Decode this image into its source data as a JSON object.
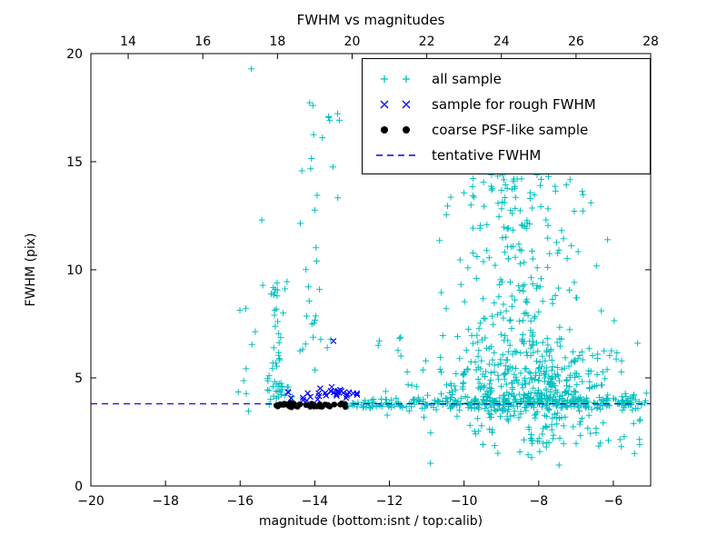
{
  "chart_data": {
    "type": "scatter",
    "title": "FWHM vs magnitudes",
    "xlabel": "magnitude (bottom:isnt / top:calib)",
    "ylabel": "FWHM (pix)",
    "xlim": [
      -20,
      -5
    ],
    "ylim": [
      0,
      20
    ],
    "grid": false,
    "legend_position": "upper right inside",
    "axes": {
      "x_bottom": {
        "values": [
          -20,
          -18,
          -16,
          -14,
          -12,
          -10,
          -8,
          -6
        ],
        "labels": [
          "−20",
          "−18",
          "−16",
          "−14",
          "−12",
          "−10",
          "−8",
          "−6"
        ]
      },
      "x_top": {
        "values": [
          14,
          16,
          18,
          20,
          22,
          24,
          26,
          28
        ],
        "labels": [
          "14",
          "16",
          "18",
          "20",
          "22",
          "24",
          "26",
          "28"
        ],
        "offset_from_bottom": 33
      },
      "y": {
        "values": [
          0,
          5,
          10,
          15,
          20
        ],
        "labels": [
          "0",
          "5",
          "10",
          "15",
          "20"
        ]
      }
    },
    "series": [
      {
        "name": "all sample",
        "marker": "plus",
        "color": "#00bfbf"
      },
      {
        "name": "sample for rough FWHM",
        "marker": "x",
        "color": "#0000ff"
      },
      {
        "name": "coarse PSF-like sample",
        "marker": "dot",
        "color": "#000000"
      },
      {
        "name": "tentative FWHM",
        "marker": "dashed-line",
        "color": "#0000ff",
        "value": 3.8
      }
    ],
    "tentative_fwhm": 3.8,
    "point_clusters": [
      {
        "series": 0,
        "count": 40,
        "x": {
          "dist": "normal",
          "mean": -15.0,
          "sd": 0.13,
          "min": -15.4,
          "max": -14.65
        },
        "y": {
          "dist": "uniform",
          "min": 3.6,
          "max": 9.8
        }
      },
      {
        "series": 0,
        "count": 22,
        "x": {
          "dist": "normal",
          "mean": -13.95,
          "sd": 0.22,
          "min": -14.5,
          "max": -13.4
        },
        "y": {
          "dist": "uniform",
          "min": 5.0,
          "max": 13.5
        }
      },
      {
        "series": 0,
        "count": 12,
        "x": {
          "dist": "normal",
          "mean": -13.85,
          "sd": 0.3,
          "min": -14.5,
          "max": -13.3
        },
        "y": {
          "dist": "uniform",
          "min": 13.0,
          "max": 17.8
        }
      },
      {
        "series": 0,
        "count": 18,
        "x": {
          "dist": "uniform",
          "min": -15.35,
          "max": -14.5
        },
        "y": {
          "dist": "normal",
          "mean": 4.45,
          "sd": 0.3,
          "min": 3.95,
          "max": 5.3
        }
      },
      {
        "series": 0,
        "count": 15,
        "x": {
          "dist": "uniform",
          "min": -12.6,
          "max": -11.0
        },
        "y": {
          "dist": "uniform",
          "min": 1.8,
          "max": 7.0
        }
      },
      {
        "series": 0,
        "count": 420,
        "x": {
          "dist": "normal",
          "mean": -8.2,
          "sd": 1.15,
          "min": -11.2,
          "max": -5.15
        },
        "y": {
          "dist": "normal",
          "mean": 4.6,
          "sd": 1.25,
          "min": 0.9,
          "max": 8.5
        }
      },
      {
        "series": 0,
        "count": 190,
        "x": {
          "dist": "normal",
          "mean": -8.7,
          "sd": 0.95,
          "min": -11.0,
          "max": -5.4
        },
        "y": {
          "dist": "uniform",
          "min": 6.0,
          "max": 14.5
        }
      },
      {
        "series": 0,
        "count": 55,
        "x": {
          "dist": "normal",
          "mean": -8.7,
          "sd": 1.0,
          "min": -10.7,
          "max": -6.2
        },
        "y": {
          "dist": "uniform",
          "min": 13.5,
          "max": 18.6
        }
      },
      {
        "series": 0,
        "count": 70,
        "x": {
          "dist": "uniform",
          "min": -13.1,
          "max": -10.9
        },
        "y": {
          "dist": "normal",
          "mean": 3.8,
          "sd": 0.12
        }
      },
      {
        "series": 0,
        "count": 240,
        "x": {
          "dist": "uniform",
          "min": -10.9,
          "max": -5.1
        },
        "y": {
          "dist": "normal",
          "mean": 3.85,
          "sd": 0.15
        }
      },
      {
        "series": 0,
        "count": 28,
        "x": {
          "dist": "uniform",
          "min": -10.6,
          "max": -5.2
        },
        "y": {
          "dist": "uniform",
          "min": 1.2,
          "max": 3.2
        }
      },
      {
        "series": 0,
        "count": 8,
        "x": {
          "dist": "uniform",
          "min": -16.1,
          "max": -15.45
        },
        "y": {
          "dist": "uniform",
          "min": 2.8,
          "max": 9.6
        }
      },
      {
        "series": 1,
        "count": 20,
        "x": {
          "dist": "uniform",
          "min": -13.6,
          "max": -12.85
        },
        "y": {
          "dist": "normal",
          "mean": 4.3,
          "sd": 0.15,
          "min": 4.0,
          "max": 4.7
        }
      },
      {
        "series": 1,
        "count": 14,
        "x": {
          "dist": "uniform",
          "min": -14.75,
          "max": -13.5
        },
        "y": {
          "dist": "normal",
          "mean": 4.15,
          "sd": 0.18,
          "min": 3.85,
          "max": 4.6
        }
      },
      {
        "series": 2,
        "count": 55,
        "x": {
          "dist": "uniform",
          "min": -15.05,
          "max": -13.15
        },
        "y": {
          "dist": "normal",
          "mean": 3.74,
          "sd": 0.05,
          "min": 3.6,
          "max": 3.9
        }
      }
    ],
    "explicit_points": [
      {
        "series": 0,
        "x": -15.7,
        "y": 19.3
      },
      {
        "series": 0,
        "x": -15.42,
        "y": 12.3
      },
      {
        "series": 0,
        "x": -14.05,
        "y": 17.6
      },
      {
        "series": 0,
        "x": -13.6,
        "y": 16.9
      },
      {
        "series": 0,
        "x": -16.05,
        "y": 4.35
      },
      {
        "series": 0,
        "x": -12.3,
        "y": 6.5
      },
      {
        "series": 0,
        "x": -11.4,
        "y": 17.9
      },
      {
        "series": 0,
        "x": -10.9,
        "y": 1.05
      },
      {
        "series": 0,
        "x": -5.35,
        "y": 6.6
      },
      {
        "series": 0,
        "x": -5.3,
        "y": 2.15
      },
      {
        "series": 1,
        "x": -13.5,
        "y": 6.7
      }
    ]
  }
}
